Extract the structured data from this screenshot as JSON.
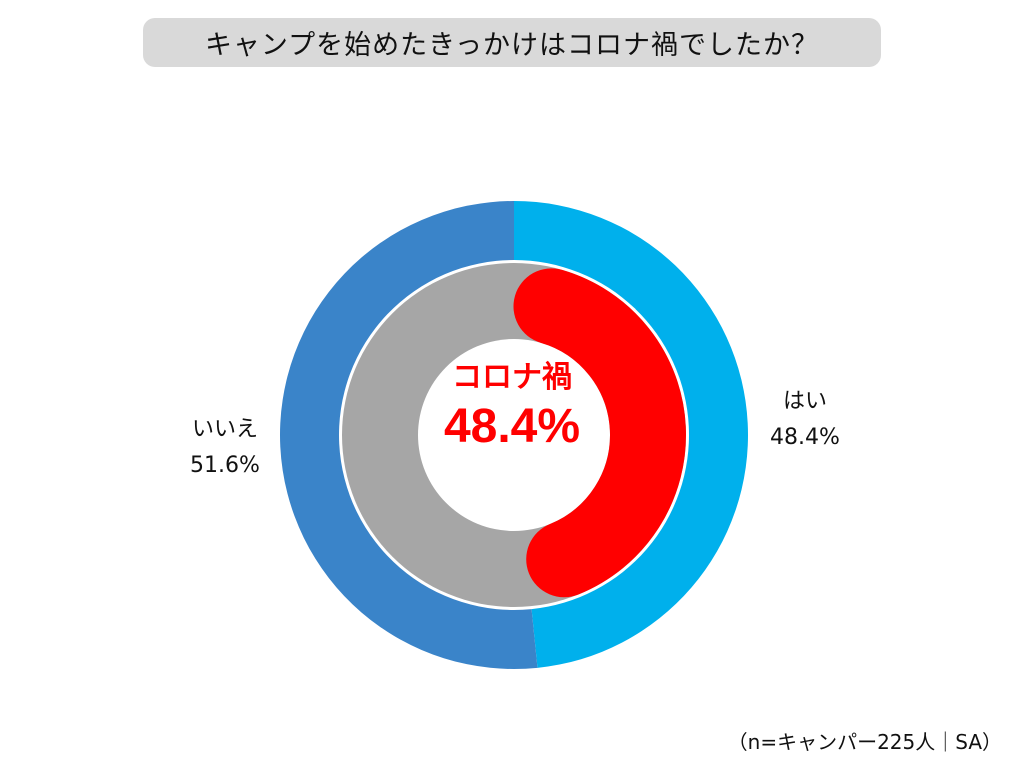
{
  "title": "キャンプを始めたきっかけはコロナ禍でしたか？",
  "note": "（n=キャンパー225人｜SA）",
  "center": {
    "label": "コロナ禍",
    "value": "48.4%"
  },
  "chart_data": {
    "type": "pie",
    "title": "キャンプを始めたきっかけはコロナ禍でしたか？",
    "categories": [
      "はい",
      "いいえ"
    ],
    "values": [
      48.4,
      51.6
    ],
    "value_labels": [
      "48.4%",
      "51.6%"
    ],
    "colors": [
      "#00b0ec",
      "#3a84c9"
    ],
    "inner_ring": {
      "highlight_value": 48.4,
      "highlight_color": "#ff0000",
      "rest_color": "#a6a6a6"
    }
  }
}
